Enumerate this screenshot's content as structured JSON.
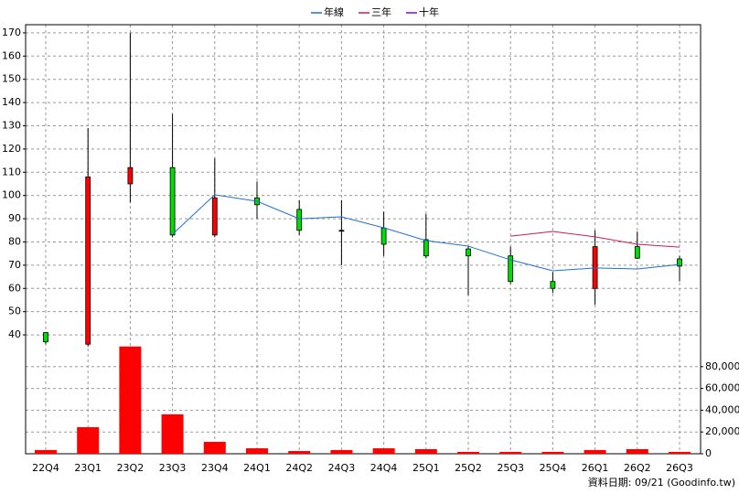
{
  "chart_data": {
    "type": "candlestick",
    "categories": [
      "22Q4",
      "23Q1",
      "23Q2",
      "23Q3",
      "23Q4",
      "24Q1",
      "24Q2",
      "24Q3",
      "24Q4",
      "25Q1",
      "25Q2",
      "25Q3",
      "25Q4",
      "26Q1",
      "26Q2",
      "26Q3"
    ],
    "open": [
      41,
      36,
      105,
      112,
      83,
      99,
      94,
      85,
      86,
      81,
      77,
      74,
      63,
      60,
      78,
      72.7
    ],
    "high": [
      41,
      129,
      170,
      135,
      116,
      106,
      98,
      98,
      93,
      92,
      78,
      78,
      67,
      85,
      84.5,
      74
    ],
    "low": [
      36,
      35,
      97,
      82,
      82,
      90,
      83,
      70,
      74,
      73,
      57,
      62,
      58,
      53,
      72.7,
      63
    ],
    "close": [
      37,
      108,
      112,
      83,
      99,
      96,
      85,
      85,
      79,
      74,
      74,
      63,
      60,
      78,
      73,
      69.6
    ],
    "up_color": "#ff0000",
    "down_color": "#00dd00",
    "ylim": [
      35.7,
      173.5
    ],
    "yticks": [
      40,
      50,
      60,
      70,
      80,
      90,
      100,
      110,
      120,
      130,
      140,
      150,
      160,
      170
    ],
    "series": [
      {
        "name": "年線",
        "color": "#1e6fd0",
        "values": [
          null,
          null,
          null,
          83.3,
          100.3,
          97.5,
          90,
          90.8,
          86.1,
          80.6,
          78.2,
          72.3,
          67.6,
          68.8,
          68.4,
          70.3
        ]
      },
      {
        "name": "三年",
        "color": "#cc1a5a",
        "values": [
          null,
          null,
          null,
          null,
          null,
          null,
          null,
          null,
          null,
          null,
          null,
          82.5,
          84.5,
          82.2,
          79,
          77.8
        ]
      },
      {
        "name": "十年",
        "color": "#9900cc",
        "values": [
          null,
          null,
          null,
          null,
          null,
          null,
          null,
          null,
          null,
          null,
          null,
          null,
          null,
          null,
          null,
          null
        ]
      }
    ],
    "volume": {
      "color": "#ff0000",
      "values": [
        3400,
        24400,
        98500,
        36200,
        10900,
        5000,
        2500,
        3400,
        5000,
        4200,
        1700,
        1700,
        1700,
        3400,
        4200,
        1700
      ],
      "ylim": [
        0,
        100000
      ],
      "yticks": [
        0,
        {
          "value": 20000,
          "label": "20,000"
        },
        {
          "value": 40000,
          "label": "40,000"
        },
        {
          "value": 60000,
          "label": "60,000"
        },
        {
          "value": 80000,
          "label": "80,000"
        }
      ]
    },
    "grid": true,
    "footer": "資料日期: 09/21 (Goodinfo.tw)"
  }
}
